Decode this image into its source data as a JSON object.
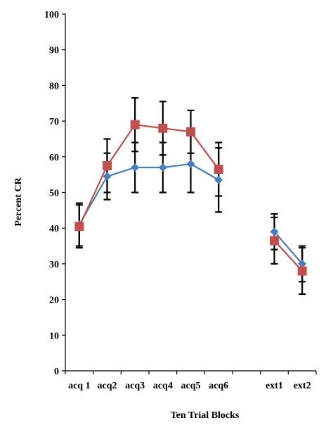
{
  "chart_data": {
    "type": "line",
    "title": "",
    "xlabel": "Ten Trial Blocks",
    "ylabel": "Percent CR",
    "ylim": [
      0,
      100
    ],
    "yticks": [
      0,
      10,
      20,
      30,
      40,
      50,
      60,
      70,
      80,
      90,
      100
    ],
    "grid": false,
    "legend": "none",
    "categories": [
      "acq 1",
      "acq2",
      "acq3",
      "acq4",
      "acq5",
      "acq6",
      "",
      "ext1",
      "ext2"
    ],
    "series": [
      {
        "marker": "diamond",
        "color": "#4a7ebb",
        "values": [
          41,
          54.5,
          57,
          57,
          58,
          53.5,
          null,
          39,
          30
        ],
        "errors": [
          6,
          6.5,
          7,
          7,
          8,
          9,
          null,
          5,
          5
        ]
      },
      {
        "marker": "square",
        "color": "#c0504d",
        "values": [
          40.5,
          57.5,
          69,
          68,
          67,
          56.5,
          null,
          36.5,
          28
        ],
        "errors": [
          6,
          7.5,
          7.5,
          7.5,
          6,
          7.5,
          null,
          6.5,
          6.5
        ]
      }
    ]
  }
}
